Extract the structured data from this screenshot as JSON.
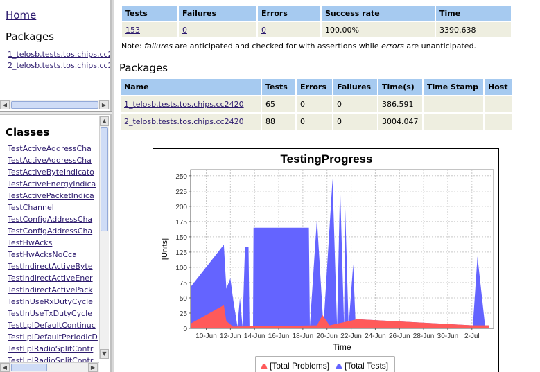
{
  "nav": {
    "home_label": "Home",
    "packages_heading": "Packages",
    "packages": [
      "1_telosb.tests.tos.chips.cc2420",
      "2_telosb.tests.tos.chips.cc2420"
    ]
  },
  "classes": {
    "heading": "Classes",
    "items": [
      "TestActiveAddressCha",
      "TestActiveAddressCha",
      "TestActiveByteIndicato",
      "TestActiveEnergyIndica",
      "TestActivePacketIndica",
      "TestChannel",
      "TestConfigAddressCha",
      "TestConfigAddressCha",
      "TestHwAcks",
      "TestHwAcksNoCca",
      "TestIndirectActiveByte",
      "TestIndirectActiveEner",
      "TestIndirectActivePack",
      "TestInUseRxDutyCycle",
      "TestInUseTxDutyCycle",
      "TestLplDefaultContinuc",
      "TestLplDefaultPeriodicD",
      "TestLplRadioSplitContr",
      "TestLplRadioSplitContr"
    ]
  },
  "summary": {
    "headers": [
      "Tests",
      "Failures",
      "Errors",
      "Success rate",
      "Time"
    ],
    "row": {
      "tests": "153",
      "failures": "0",
      "errors": "0",
      "success_rate": "100.00%",
      "time": "3390.638"
    }
  },
  "note": {
    "prefix": "Note: ",
    "failures_word": "failures",
    "middle": " are anticipated and checked for with assertions while ",
    "errors_word": "errors",
    "suffix": " are unanticipated."
  },
  "packages_section": {
    "heading": "Packages",
    "headers": [
      "Name",
      "Tests",
      "Errors",
      "Failures",
      "Time(s)",
      "Time Stamp",
      "Host"
    ],
    "rows": [
      {
        "name": "1_telosb.tests.tos.chips.cc2420",
        "tests": "65",
        "errors": "0",
        "failures": "0",
        "time": "386.591",
        "timestamp": "",
        "host": ""
      },
      {
        "name": "2_telosb.tests.tos.chips.cc2420",
        "tests": "88",
        "errors": "0",
        "failures": "0",
        "time": "3004.047",
        "timestamp": "",
        "host": ""
      }
    ]
  },
  "chart_data": {
    "type": "area",
    "title": "TestingProgress",
    "xlabel": "Time",
    "ylabel": "[Units]",
    "ylim": [
      0,
      260
    ],
    "yticks": [
      0,
      25,
      50,
      75,
      100,
      125,
      150,
      175,
      200,
      225,
      250
    ],
    "x_range_days": [
      8.7,
      3.8
    ],
    "xticks": [
      "10-Jun",
      "12-Jun",
      "14-Jun",
      "16-Jun",
      "18-Jun",
      "20-Jun",
      "22-Jun",
      "24-Jun",
      "26-Jun",
      "28-Jun",
      "30-Jun",
      "2-Jul"
    ],
    "grid": true,
    "legend_position": "bottom",
    "colors": {
      "total_tests": "#6464ff",
      "total_problems": "#ff5a5a"
    },
    "series": [
      {
        "name": "[Total Tests]",
        "points": [
          [
            "2008-06-08 17:00",
            68
          ],
          [
            "2008-06-11 11:00",
            137
          ],
          [
            "2008-06-11 16:00",
            65
          ],
          [
            "2008-06-12 00:00",
            82
          ],
          [
            "2008-06-12 05:00",
            50
          ],
          [
            "2008-06-12 14:00",
            3
          ],
          [
            "2008-06-12 19:00",
            50
          ],
          [
            "2008-06-13 00:00",
            3
          ],
          [
            "2008-06-13 05:00",
            133
          ],
          [
            "2008-06-13 12:00",
            133
          ],
          [
            "2008-06-13 14:00",
            3
          ],
          [
            "2008-06-13 21:00",
            3
          ],
          [
            "2008-06-13 22:00",
            165
          ],
          [
            "2008-06-18 12:00",
            165
          ],
          [
            "2008-06-18 14:00",
            3
          ],
          [
            "2008-06-19 04:00",
            180
          ],
          [
            "2008-06-19 17:00",
            3
          ],
          [
            "2008-06-20 11:00",
            245
          ],
          [
            "2008-06-20 20:00",
            3
          ],
          [
            "2008-06-21 02:00",
            235
          ],
          [
            "2008-06-21 10:00",
            3
          ],
          [
            "2008-06-21 12:00",
            200
          ],
          [
            "2008-06-21 19:00",
            3
          ],
          [
            "2008-06-22 04:00",
            105
          ],
          [
            "2008-06-22 09:00",
            3
          ],
          [
            "2008-06-22 12:00",
            15
          ],
          [
            "2008-07-02 02:00",
            5
          ],
          [
            "2008-07-02 11:00",
            118
          ],
          [
            "2008-07-03 02:00",
            5
          ],
          [
            "2008-07-03 10:00",
            5
          ]
        ]
      },
      {
        "name": "[Total Problems]",
        "points": [
          [
            "2008-06-08 17:00",
            8
          ],
          [
            "2008-06-11 11:00",
            38
          ],
          [
            "2008-06-11 16:00",
            12
          ],
          [
            "2008-06-12 05:00",
            3
          ],
          [
            "2008-06-19 04:00",
            5
          ],
          [
            "2008-06-19 15:00",
            22
          ],
          [
            "2008-06-20 05:00",
            5
          ],
          [
            "2008-06-22 12:00",
            15
          ],
          [
            "2008-07-02 02:00",
            5
          ],
          [
            "2008-07-02 11:00",
            5
          ],
          [
            "2008-07-03 10:00",
            5
          ]
        ]
      }
    ]
  }
}
